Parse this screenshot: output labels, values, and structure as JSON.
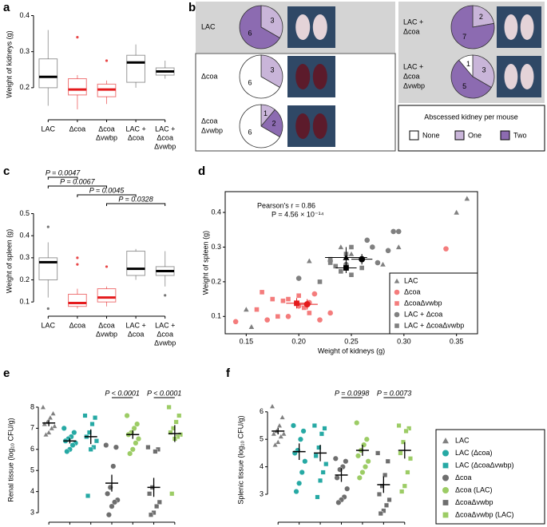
{
  "chart_data": [
    {
      "type": "box",
      "panel": "a",
      "ylabel": "Weight of kidneys (g)",
      "categories": [
        [
          "LAC"
        ],
        [
          "Δcoa"
        ],
        [
          "Δcoa",
          "Δvwbp"
        ],
        [
          "LAC +",
          "Δcoa"
        ],
        [
          "LAC +",
          "Δcoa",
          "Δvwbp"
        ]
      ],
      "boxes": [
        {
          "min": 0.15,
          "q1": 0.2,
          "median": 0.23,
          "q3": 0.28,
          "max": 0.36,
          "outliers": [],
          "color": "#555555"
        },
        {
          "min": 0.14,
          "q1": 0.18,
          "median": 0.195,
          "q3": 0.225,
          "max": 0.235,
          "outliers": [
            0.34
          ],
          "color": "#e41a1c"
        },
        {
          "min": 0.155,
          "q1": 0.175,
          "median": 0.195,
          "q3": 0.21,
          "max": 0.22,
          "outliers": [
            0.275
          ],
          "color": "#e41a1c"
        },
        {
          "min": 0.2,
          "q1": 0.215,
          "median": 0.27,
          "q3": 0.29,
          "max": 0.32,
          "outliers": [],
          "color": "#555555"
        },
        {
          "min": 0.225,
          "q1": 0.235,
          "median": 0.245,
          "q3": 0.255,
          "max": 0.275,
          "outliers": [],
          "color": "#555555"
        }
      ],
      "ylim": [
        0.12,
        0.41
      ],
      "yticks": [
        0.2,
        0.3,
        0.4
      ]
    },
    {
      "type": "pie",
      "panel": "b",
      "legend_title": "Abscessed kidney per mouse",
      "categories": [
        [
          "LAC"
        ],
        [
          "Δcoa"
        ],
        [
          "Δcoa",
          "Δvwbp"
        ],
        [
          "LAC +",
          "Δcoa"
        ],
        [
          "LAC +",
          "Δcoa",
          "Δvwbp"
        ]
      ],
      "series": [
        {
          "name": "None",
          "color": "#ffffff",
          "values": [
            0,
            6,
            6,
            0,
            1
          ]
        },
        {
          "name": "One",
          "color": "#c9b5d9",
          "values": [
            3,
            3,
            1,
            2,
            3
          ]
        },
        {
          "name": "Two",
          "color": "#8c6bb1",
          "values": [
            6,
            0,
            2,
            7,
            5
          ]
        }
      ]
    },
    {
      "type": "box",
      "panel": "c",
      "ylabel": "Weight of spleen (g)",
      "categories": [
        [
          "LAC"
        ],
        [
          "Δcoa"
        ],
        [
          "Δcoa",
          "Δvwbp"
        ],
        [
          "LAC +",
          "Δcoa"
        ],
        [
          "LAC +",
          "Δcoa",
          "Δvwbp"
        ]
      ],
      "boxes": [
        {
          "min": 0.12,
          "q1": 0.2,
          "median": 0.28,
          "q3": 0.3,
          "max": 0.37,
          "outliers": [
            0.44,
            0.07
          ],
          "color": "#555555"
        },
        {
          "min": 0.07,
          "q1": 0.08,
          "median": 0.095,
          "q3": 0.135,
          "max": 0.16,
          "outliers": [
            0.3,
            0.27
          ],
          "color": "#e41a1c"
        },
        {
          "min": 0.08,
          "q1": 0.1,
          "median": 0.12,
          "q3": 0.16,
          "max": 0.17,
          "outliers": [
            0.26
          ],
          "color": "#e41a1c"
        },
        {
          "min": 0.2,
          "q1": 0.22,
          "median": 0.25,
          "q3": 0.33,
          "max": 0.34,
          "outliers": [],
          "color": "#555555"
        },
        {
          "min": 0.17,
          "q1": 0.22,
          "median": 0.24,
          "q3": 0.26,
          "max": 0.33,
          "outliers": [
            0.13
          ],
          "color": "#555555"
        }
      ],
      "ylim": [
        0.05,
        0.52
      ],
      "yticks": [
        0.1,
        0.2,
        0.3,
        0.4,
        0.5
      ],
      "annotations": [
        "P = 0.0047",
        "P = 0.0067",
        "P = 0.0045",
        "P = 0.0328"
      ]
    },
    {
      "type": "scatter",
      "panel": "d",
      "xlabel": "Weight of kidneys (g)",
      "ylabel": "Weight of spleen (g)",
      "annotations": [
        "Pearson's r = 0.86",
        "P = 4.56 × 10⁻¹⁴"
      ],
      "xlim": [
        0.13,
        0.37
      ],
      "xticks": [
        0.15,
        {
          "value": 0.2,
          "label": "0.20"
        },
        0.25,
        {
          "value": 0.3,
          "label": "0.30"
        },
        0.35
      ],
      "ylim": [
        0.05,
        0.46
      ],
      "yticks": [
        0.1,
        0.2,
        0.3,
        0.4
      ],
      "legend": "lower right",
      "series": [
        {
          "name": "LAC",
          "color": "#808080",
          "marker": "triangle",
          "mean_color": "#000000",
          "x": [
            0.36,
            0.35,
            0.24,
            0.25,
            0.21,
            0.28,
            0.15,
            0.155,
            0.295
          ],
          "y": [
            0.44,
            0.4,
            0.3,
            0.28,
            0.26,
            0.25,
            0.12,
            0.07,
            0.3
          ],
          "mean_x": 0.245,
          "mean_y": 0.27,
          "sem_x": 0.02,
          "sem_y": 0.03
        },
        {
          "name": "Δcoa",
          "color": "#f47c7c",
          "marker": "circle",
          "mean_color": "#e41a1c",
          "x": [
            0.34,
            0.14,
            0.17,
            0.2,
            0.21,
            0.22,
            0.23,
            0.19,
            0.215
          ],
          "y": [
            0.295,
            0.085,
            0.09,
            0.13,
            0.14,
            0.09,
            0.11,
            0.1,
            0.165
          ],
          "mean_x": 0.208,
          "mean_y": 0.135,
          "sem_x": 0.01,
          "sem_y": 0.015
        },
        {
          "name": "ΔcoaΔvwbp",
          "color": "#f47c7c",
          "marker": "square",
          "mean_color": "#e41a1c",
          "x": [
            0.165,
            0.16,
            0.18,
            0.185,
            0.19,
            0.2,
            0.175,
            0.205,
            0.21
          ],
          "y": [
            0.17,
            0.12,
            0.1,
            0.145,
            0.15,
            0.16,
            0.15,
            0.125,
            0.11
          ],
          "mean_x": 0.198,
          "mean_y": 0.138,
          "sem_x": 0.01,
          "sem_y": 0.015
        },
        {
          "name": "LAC + Δcoa",
          "color": "#808080",
          "marker": "circle",
          "mean_color": "#000000",
          "x": [
            0.29,
            0.295,
            0.265,
            0.27,
            0.2,
            0.23,
            0.245,
            0.285,
            0.275
          ],
          "y": [
            0.345,
            0.345,
            0.32,
            0.3,
            0.21,
            0.26,
            0.25,
            0.29,
            0.255
          ],
          "mean_x": 0.26,
          "mean_y": 0.265,
          "sem_x": 0.01,
          "sem_y": 0.015
        },
        {
          "name": "LAC + ΔcoaΔvwbp",
          "color": "#808080",
          "marker": "square",
          "mean_color": "#000000",
          "x": [
            0.23,
            0.24,
            0.25,
            0.26,
            0.22,
            0.245,
            0.23,
            0.25,
            0.235
          ],
          "y": [
            0.265,
            0.23,
            0.22,
            0.24,
            0.2,
            0.28,
            0.255,
            0.3,
            0.245
          ],
          "mean_x": 0.245,
          "mean_y": 0.24,
          "sem_x": 0.01,
          "sem_y": 0.015
        }
      ]
    },
    {
      "type": "strip",
      "panel": "e",
      "ylabel": "Renal tissue (log₁₀ CFU/g)",
      "ylim": [
        2.7,
        8.3
      ],
      "yticks": [
        3,
        4,
        5,
        6,
        7,
        8
      ],
      "annotations": [
        "P < 0.0001",
        "P < 0.0001"
      ],
      "series": [
        {
          "name": "LAC",
          "color": "#808080",
          "marker": "triangle",
          "values": [
            8.0,
            7.7,
            7.5,
            7.3,
            7.2,
            7.1,
            7.0,
            6.8,
            6.7
          ],
          "mean": 7.25,
          "sem": 0.15
        },
        {
          "name": "LAC (Δcoa)",
          "color": "#26a9a4",
          "marker": "circle",
          "values": [
            7.0,
            6.8,
            6.6,
            6.5,
            6.4,
            6.3,
            6.2,
            6.0,
            5.9
          ],
          "mean": 6.4,
          "sem": 0.12
        },
        {
          "name": "LAC (ΔcoaΔvwbp)",
          "color": "#26a9a4",
          "marker": "square",
          "values": [
            7.6,
            7.5,
            7.2,
            6.8,
            6.6,
            6.4,
            6.1,
            6.0,
            3.8
          ],
          "mean": 6.6,
          "sem": 0.35
        },
        {
          "name": "Δcoa",
          "color": "#6e6e6e",
          "marker": "circle",
          "values": [
            6.2,
            6.1,
            5.2,
            4.2,
            3.9,
            3.6,
            3.5,
            3.3,
            2.9
          ],
          "mean": 4.4,
          "sem": 0.4
        },
        {
          "name": "Δcoa (LAC)",
          "color": "#9ccc65",
          "marker": "circle",
          "values": [
            7.6,
            7.2,
            7.0,
            6.8,
            6.7,
            6.5,
            6.3,
            6.0,
            5.8
          ],
          "mean": 6.7,
          "sem": 0.2
        },
        {
          "name": "ΔcoaΔvwbp",
          "color": "#6e6e6e",
          "marker": "square",
          "values": [
            6.1,
            6.0,
            5.9,
            4.2,
            3.9,
            3.5,
            3.3,
            3.0,
            2.9
          ],
          "mean": 4.2,
          "sem": 0.45
        },
        {
          "name": "ΔcoaΔvwbp (LAC)",
          "color": "#9ccc65",
          "marker": "square",
          "values": [
            8.0,
            7.6,
            7.3,
            7.0,
            6.8,
            6.7,
            6.6,
            6.5,
            3.9
          ],
          "mean": 6.75,
          "sem": 0.4
        }
      ]
    },
    {
      "type": "strip",
      "panel": "f",
      "ylabel": "Splenic tissue (log₁₀ CFU/g)",
      "ylim": [
        2.1,
        6.4
      ],
      "yticks": [
        3,
        4,
        5,
        6
      ],
      "annotations": [
        "P = 0.0998",
        "P = 0.0073"
      ],
      "series": [
        {
          "values": [
            6.2,
            5.8,
            5.5,
            5.3,
            5.2,
            5.2,
            5.1,
            4.9,
            4.8
          ],
          "mean": 5.3,
          "sem": 0.12
        },
        {
          "values": [
            5.5,
            5.3,
            5.0,
            4.6,
            4.5,
            4.2,
            3.8,
            3.4,
            3.1
          ],
          "mean": 4.55,
          "sem": 0.3
        },
        {
          "values": [
            5.5,
            5.4,
            5.2,
            4.7,
            4.4,
            4.1,
            3.8,
            3.5,
            2.9
          ],
          "mean": 4.5,
          "sem": 0.3
        },
        {
          "values": [
            4.3,
            4.2,
            4.0,
            3.9,
            3.6,
            3.2,
            2.9,
            2.8,
            2.7
          ],
          "mean": 3.7,
          "sem": 0.25
        },
        {
          "values": [
            5.6,
            5.0,
            4.8,
            4.6,
            4.4,
            4.2,
            4.0,
            3.8,
            3.6
          ],
          "mean": 4.6,
          "sem": 0.2
        },
        {
          "values": [
            4.5,
            4.2,
            3.7,
            3.3,
            3.0,
            2.8,
            2.6,
            2.4,
            2.3
          ],
          "mean": 3.35,
          "sem": 0.3
        },
        {
          "values": [
            5.5,
            5.4,
            5.3,
            4.9,
            4.5,
            4.3,
            3.8,
            3.3,
            3.1
          ],
          "mean": 4.6,
          "sem": 0.3
        }
      ]
    }
  ]
}
